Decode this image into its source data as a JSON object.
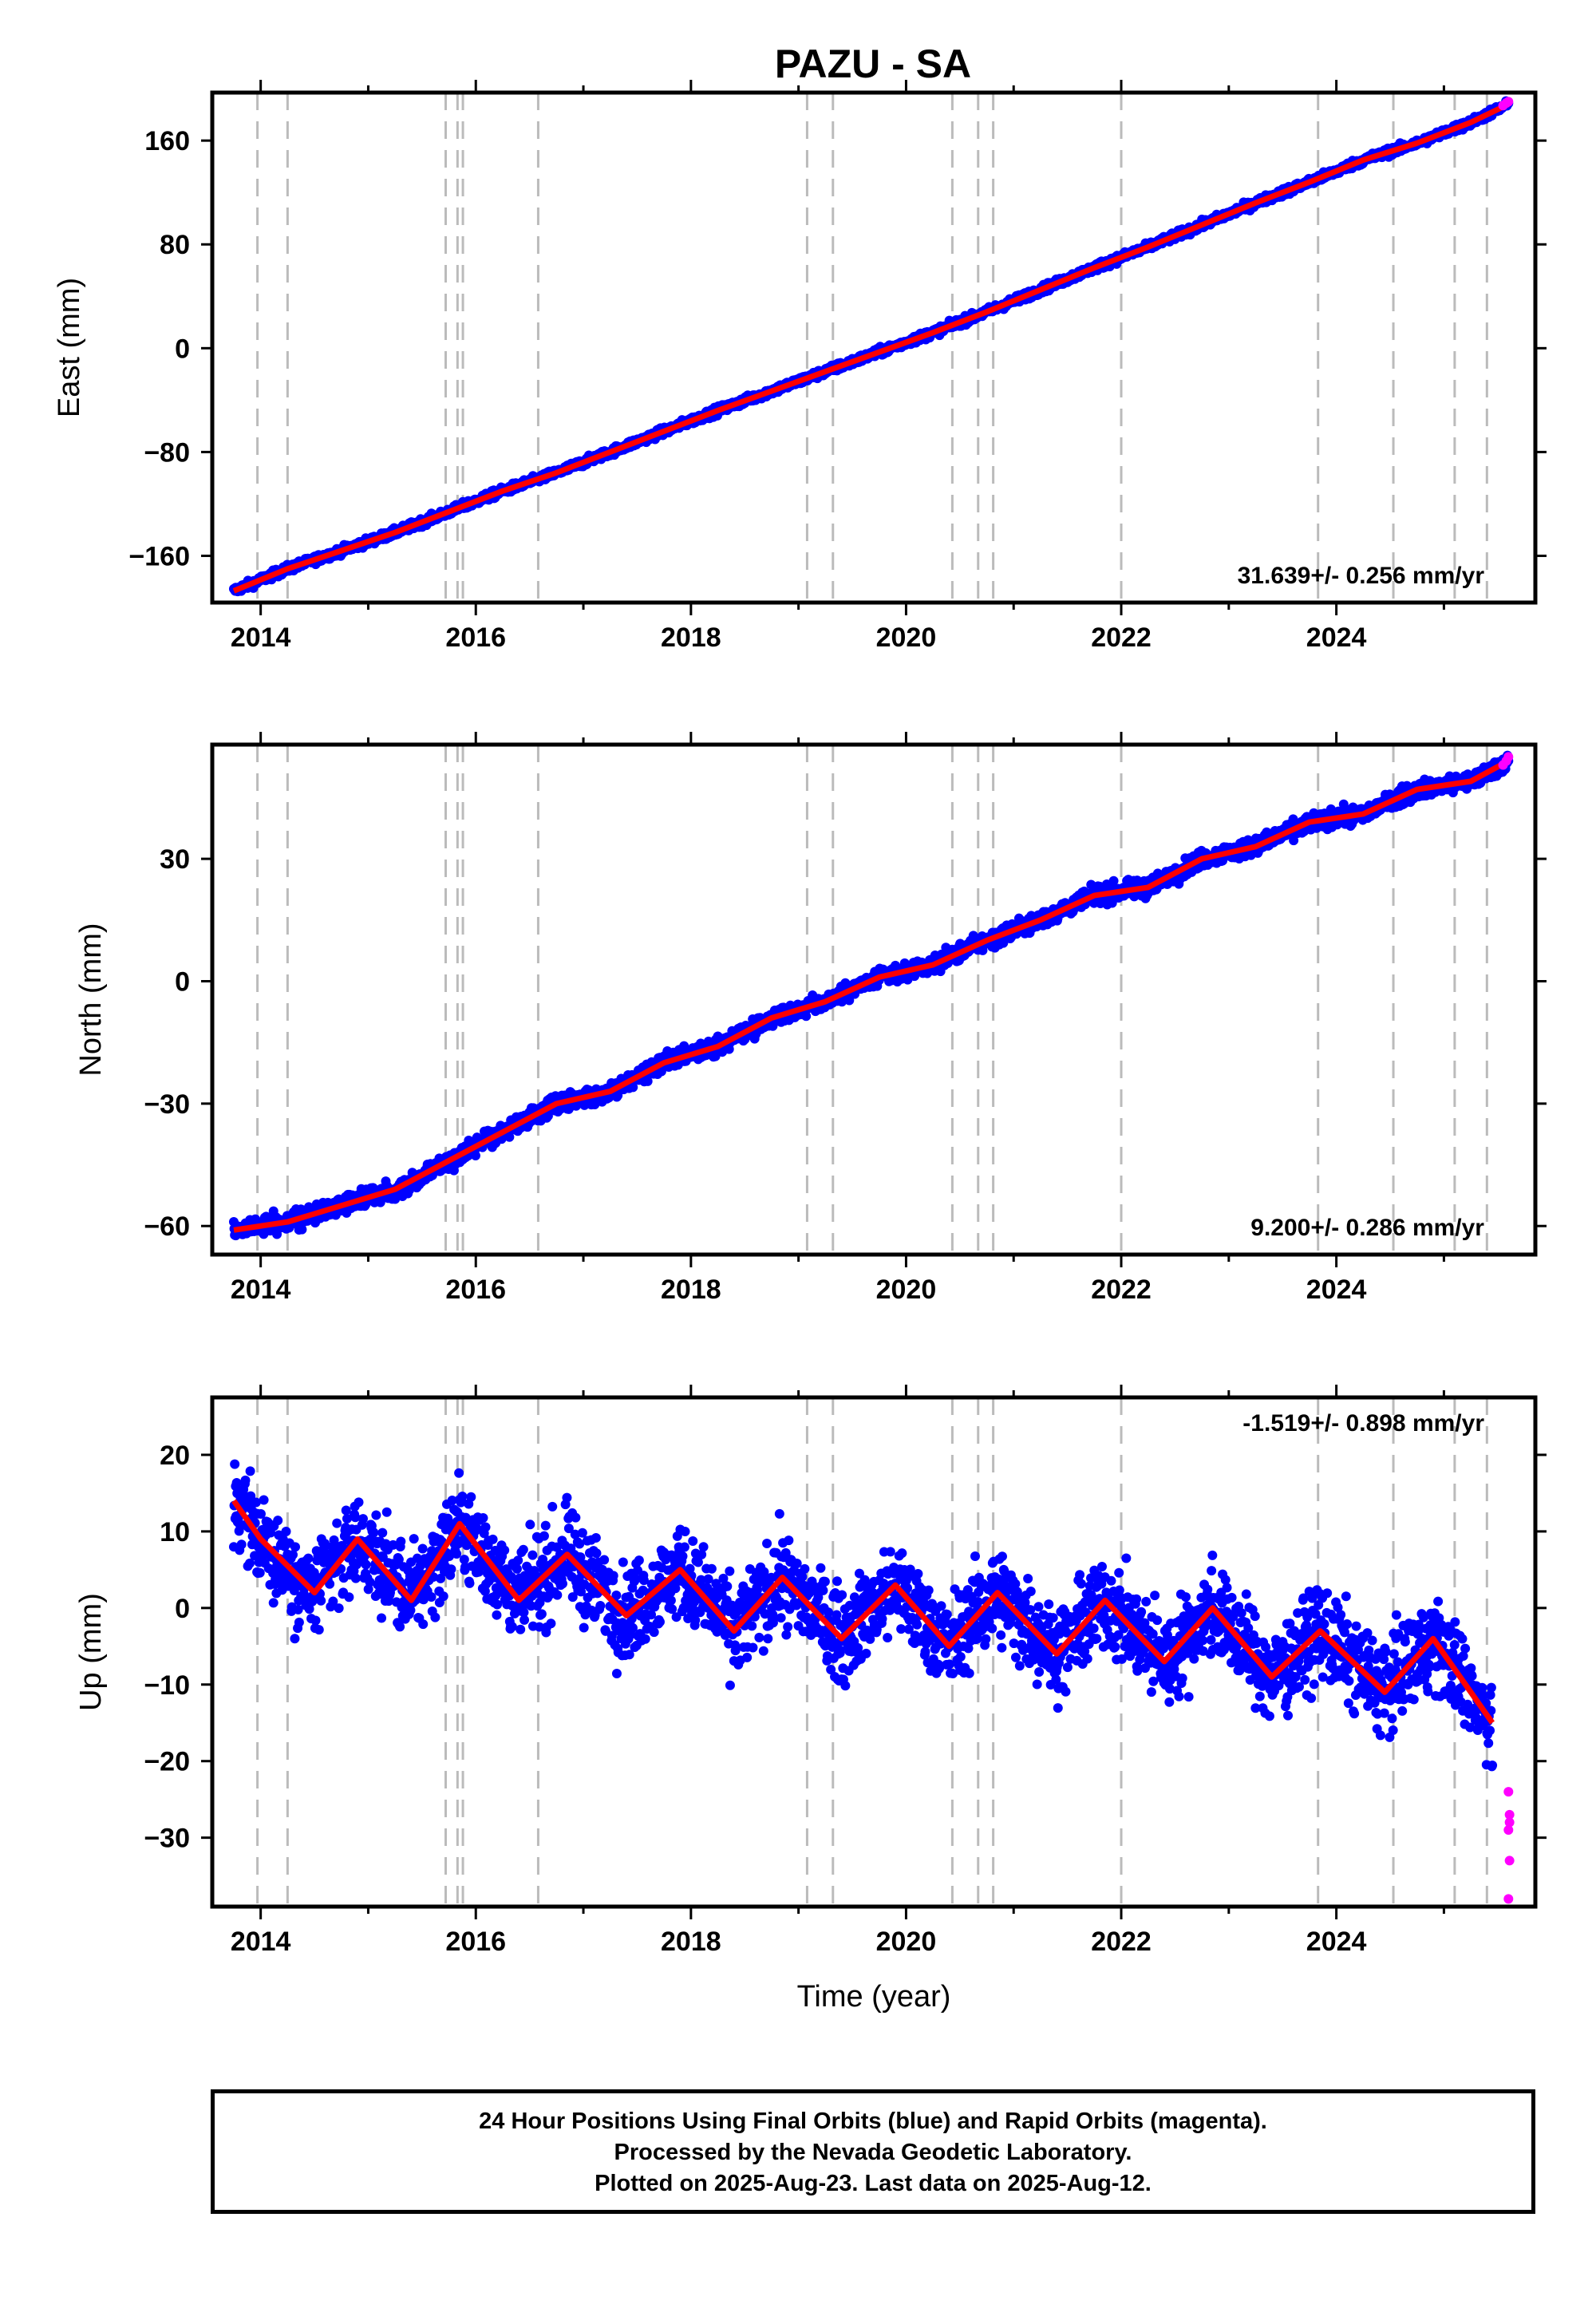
{
  "title": "PAZU - SA",
  "chart_data": [
    {
      "type": "scatter",
      "panel": "east",
      "ylabel": "East (mm)",
      "xlabel": "",
      "rate_label": "31.639+/- 0.256 mm/yr",
      "xlim": [
        2013.55,
        2025.85
      ],
      "ylim": [
        -196,
        197
      ],
      "yticks": [
        -160,
        -80,
        0,
        80,
        160
      ],
      "ytick_labels": [
        "−160",
        "−80",
        "0",
        "80",
        "160"
      ],
      "xticks": [
        2014,
        2016,
        2018,
        2020,
        2022,
        2024
      ],
      "xtick_labels": [
        "2014",
        "2016",
        "2018",
        "2020",
        "2022",
        "2024"
      ],
      "rate_mm_per_yr": 31.639,
      "series": [
        {
          "kind": "final-orbits",
          "color": "#0000ff",
          "x": [
            2013.75,
            2014.25,
            2014.75,
            2015.25,
            2015.75,
            2016.25,
            2016.75,
            2017.25,
            2017.75,
            2018.25,
            2018.75,
            2019.25,
            2019.75,
            2020.25,
            2020.75,
            2021.25,
            2021.75,
            2022.25,
            2022.75,
            2023.25,
            2023.75,
            2024.25,
            2024.75,
            2025.25,
            2025.6
          ],
          "y": [
            -187,
            -170,
            -156,
            -142,
            -126,
            -110,
            -96,
            -80,
            -64,
            -48,
            -33,
            -18,
            -3,
            12,
            28,
            45,
            62,
            78,
            95,
            112,
            128,
            145,
            158,
            174,
            188
          ]
        },
        {
          "kind": "trend-model",
          "color": "#ff0000",
          "x": [
            2013.75,
            2014.25,
            2014.75,
            2015.25,
            2015.75,
            2016.25,
            2016.75,
            2017.25,
            2017.75,
            2018.25,
            2018.75,
            2019.25,
            2019.75,
            2020.25,
            2020.75,
            2021.25,
            2021.75,
            2022.25,
            2022.75,
            2023.25,
            2023.75,
            2024.25,
            2024.75,
            2025.25,
            2025.6
          ],
          "y": [
            -187,
            -170,
            -156,
            -142,
            -126,
            -110,
            -96,
            -80,
            -64,
            -48,
            -33,
            -18,
            -3,
            12,
            28,
            45,
            62,
            78,
            95,
            112,
            128,
            145,
            158,
            174,
            188
          ]
        },
        {
          "kind": "rapid-orbits",
          "color": "#ff00ff",
          "x": [
            2025.55,
            2025.58,
            2025.6
          ],
          "y": [
            187,
            189,
            190
          ]
        }
      ]
    },
    {
      "type": "scatter",
      "panel": "north",
      "ylabel": "North (mm)",
      "xlabel": "",
      "rate_label": "9.200+/- 0.286 mm/yr",
      "xlim": [
        2013.55,
        2025.85
      ],
      "ylim": [
        -67,
        58
      ],
      "yticks": [
        -60,
        -30,
        0,
        30
      ],
      "ytick_labels": [
        "−60",
        "−30",
        "0",
        "30"
      ],
      "xticks": [
        2014,
        2016,
        2018,
        2020,
        2022,
        2024
      ],
      "xtick_labels": [
        "2014",
        "2016",
        "2018",
        "2020",
        "2022",
        "2024"
      ],
      "rate_mm_per_yr": 9.2,
      "series": [
        {
          "kind": "final-orbits",
          "color": "#0000ff",
          "x": [
            2013.75,
            2014.25,
            2014.75,
            2015.25,
            2015.75,
            2016.25,
            2016.75,
            2017.25,
            2017.75,
            2018.25,
            2018.75,
            2019.25,
            2019.75,
            2020.25,
            2020.75,
            2021.25,
            2021.75,
            2022.25,
            2022.75,
            2023.25,
            2023.75,
            2024.25,
            2024.75,
            2025.25,
            2025.6
          ],
          "y": [
            -61,
            -59,
            -55,
            -51,
            -44,
            -37,
            -30,
            -27,
            -20,
            -16,
            -9,
            -5,
            1,
            4,
            10,
            15,
            21,
            23,
            30,
            33,
            39,
            41,
            47,
            49,
            54
          ]
        },
        {
          "kind": "trend-model",
          "color": "#ff0000",
          "x": [
            2013.75,
            2014.25,
            2014.75,
            2015.25,
            2015.75,
            2016.25,
            2016.75,
            2017.25,
            2017.75,
            2018.25,
            2018.75,
            2019.25,
            2019.75,
            2020.25,
            2020.75,
            2021.25,
            2021.75,
            2022.25,
            2022.75,
            2023.25,
            2023.75,
            2024.25,
            2024.75,
            2025.25,
            2025.6
          ],
          "y": [
            -61,
            -59,
            -55,
            -51,
            -44,
            -37,
            -30,
            -27,
            -20,
            -16,
            -9,
            -5,
            1,
            4,
            10,
            15,
            21,
            23,
            30,
            33,
            39,
            41,
            47,
            49,
            54
          ]
        },
        {
          "kind": "rapid-orbits",
          "color": "#ff00ff",
          "x": [
            2025.55,
            2025.58,
            2025.6
          ],
          "y": [
            53,
            54,
            55
          ]
        }
      ]
    },
    {
      "type": "scatter",
      "panel": "up",
      "ylabel": "Up (mm)",
      "xlabel": "Time (year)",
      "rate_label": "-1.519+/- 0.898 mm/yr",
      "xlim": [
        2013.55,
        2025.85
      ],
      "ylim": [
        -39,
        27.5
      ],
      "yticks": [
        -30,
        -20,
        -10,
        0,
        10,
        20
      ],
      "ytick_labels": [
        "−30",
        "−20",
        "−10",
        "0",
        "10",
        "20"
      ],
      "xticks": [
        2014,
        2016,
        2018,
        2020,
        2022,
        2024
      ],
      "xtick_labels": [
        "2014",
        "2016",
        "2018",
        "2020",
        "2022",
        "2024"
      ],
      "rate_mm_per_yr": -1.519,
      "series": [
        {
          "kind": "final-orbits",
          "color": "#0000ff",
          "x": [
            2013.75,
            2014.0,
            2014.5,
            2014.9,
            2015.4,
            2015.85,
            2016.4,
            2016.85,
            2017.4,
            2017.9,
            2018.4,
            2018.85,
            2019.4,
            2019.9,
            2020.4,
            2020.85,
            2021.4,
            2021.85,
            2022.4,
            2022.85,
            2023.4,
            2023.85,
            2024.45,
            2024.9,
            2025.45
          ],
          "y": [
            14,
            9,
            2,
            9,
            1,
            11,
            1,
            7,
            -1,
            5,
            -3,
            4,
            -4,
            3,
            -5,
            2,
            -6,
            1,
            -7,
            0,
            -9,
            -3,
            -11,
            -4,
            -15
          ]
        },
        {
          "kind": "trend-model",
          "color": "#ff0000",
          "x": [
            2013.75,
            2014.0,
            2014.5,
            2014.9,
            2015.4,
            2015.85,
            2016.4,
            2016.85,
            2017.4,
            2017.9,
            2018.4,
            2018.85,
            2019.4,
            2019.9,
            2020.4,
            2020.85,
            2021.4,
            2021.85,
            2022.4,
            2022.85,
            2023.4,
            2023.85,
            2024.45,
            2024.9,
            2025.45
          ],
          "y": [
            14,
            9,
            2,
            9,
            1,
            11,
            1,
            7,
            -1,
            5,
            -3,
            4,
            -4,
            3,
            -5,
            2,
            -6,
            1,
            -7,
            0,
            -9,
            -3,
            -11,
            -4,
            -15
          ]
        },
        {
          "kind": "rapid-orbits",
          "color": "#ff00ff",
          "x": [
            2025.6,
            2025.61,
            2025.61,
            2025.6,
            2025.61,
            2025.6
          ],
          "y": [
            -24,
            -27,
            -28,
            -29,
            -33,
            -38
          ]
        }
      ]
    }
  ],
  "event_lines": {
    "color": "#bbbbbb",
    "x": [
      2013.97,
      2014.25,
      2015.72,
      2015.83,
      2015.88,
      2016.58,
      2019.08,
      2019.32,
      2020.43,
      2020.67,
      2020.81,
      2022.0,
      2023.83,
      2024.53,
      2025.1,
      2025.4
    ]
  },
  "footer": {
    "line1": "24 Hour Positions Using Final Orbits (blue) and Rapid Orbits (magenta).",
    "line2": "Processed by the Nevada Geodetic Laboratory.",
    "line3": "Plotted on 2025-Aug-23. Last data on 2025-Aug-12."
  }
}
